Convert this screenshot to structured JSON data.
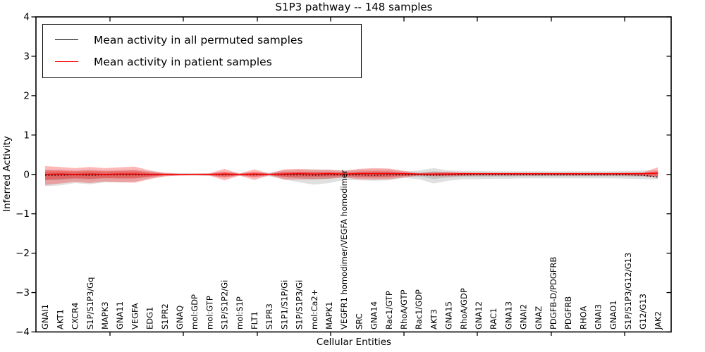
{
  "chart_data": {
    "type": "line",
    "title": "S1P3 pathway -- 148 samples",
    "xlabel": "Cellular Entities",
    "ylabel": "Inferred Activity",
    "ylim": [
      -4,
      4
    ],
    "yticks": [
      4,
      3,
      2,
      1,
      0,
      -1,
      -2,
      -3,
      -4
    ],
    "grid": false,
    "legend_position": "upper left",
    "sample_count_in_title": 148,
    "categories": [
      "GNAI1",
      "AKT1",
      "CXCR4",
      "S1P/S1P3/Gq",
      "MAPK3",
      "GNA11",
      "VEGFA",
      "EDG1",
      "S1PR2",
      "GNAQ",
      "mol:GDP",
      "mol:GTP",
      "S1P/S1P2/Gi",
      "mol:S1P",
      "FLT1",
      "S1PR3",
      "S1P1/S1P/Gi",
      "S1P/S1P3/Gi",
      "mol:Ca2+",
      "MAPK1",
      "VEGFR1 homodimer/VEGFA homodimer",
      "SRC",
      "GNA14",
      "Rac1/GTP",
      "RhoA/GTP",
      "Rac1/GDP",
      "AKT3",
      "GNA15",
      "RhoA/GDP",
      "GNA12",
      "RAC1",
      "GNA13",
      "GNAI2",
      "GNAZ",
      "PDGFB-D/PDGFRB",
      "PDGFRB",
      "RHOA",
      "GNAI3",
      "GNAO1",
      "S1P/S1P3/G12/G13",
      "G12/G13",
      "JAK2"
    ],
    "series": [
      {
        "name": "Mean activity in all permuted samples",
        "color": "#000000",
        "line_style": "dashed",
        "values": [
          -0.02,
          -0.02,
          -0.01,
          -0.02,
          -0.01,
          -0.01,
          -0.01,
          -0.01,
          0,
          0,
          0,
          0,
          -0.01,
          0,
          -0.01,
          0,
          -0.01,
          -0.01,
          -0.02,
          -0.01,
          -0.01,
          -0.01,
          -0.02,
          -0.01,
          -0.01,
          -0.01,
          -0.02,
          -0.01,
          -0.01,
          -0.01,
          -0.01,
          -0.01,
          -0.01,
          -0.01,
          -0.01,
          -0.01,
          -0.01,
          -0.01,
          -0.01,
          -0.01,
          -0.02,
          -0.07
        ]
      },
      {
        "name": "Mean activity in patient samples",
        "color": "#ff0000",
        "line_style": "solid",
        "values": [
          0,
          0.01,
          0,
          0.01,
          0,
          0.01,
          0.01,
          0,
          0,
          0,
          0,
          0,
          0.01,
          0,
          0.01,
          0,
          0.01,
          0.02,
          0.01,
          0.02,
          0.01,
          0.02,
          0.02,
          0.02,
          0.02,
          0.01,
          0.01,
          0.01,
          0.02,
          0.02,
          0.02,
          0.02,
          0.02,
          0.02,
          0.02,
          0.02,
          0.02,
          0.02,
          0.02,
          0.02,
          0.02,
          0.03
        ]
      }
    ],
    "bands": [
      {
        "name": "permuted samples activity spread",
        "color": "#000000",
        "fill_opacity": 0.12,
        "upper": [
          0.12,
          0.12,
          0.1,
          0.12,
          0.1,
          0.11,
          0.12,
          0.08,
          0.04,
          0.03,
          0.03,
          0.03,
          0.06,
          0.04,
          0.05,
          0.05,
          0.1,
          0.12,
          0.13,
          0.12,
          0.1,
          0.12,
          0.13,
          0.13,
          0.08,
          0.1,
          0.16,
          0.1,
          0.09,
          0.09,
          0.08,
          0.08,
          0.08,
          0.08,
          0.08,
          0.08,
          0.08,
          0.08,
          0.08,
          0.09,
          0.1,
          0.1
        ],
        "lower": [
          -0.3,
          -0.28,
          -0.22,
          -0.25,
          -0.2,
          -0.2,
          -0.18,
          -0.1,
          -0.05,
          -0.03,
          -0.03,
          -0.04,
          -0.07,
          -0.04,
          -0.06,
          -0.05,
          -0.13,
          -0.2,
          -0.26,
          -0.22,
          -0.14,
          -0.15,
          -0.16,
          -0.15,
          -0.09,
          -0.12,
          -0.23,
          -0.16,
          -0.12,
          -0.12,
          -0.11,
          -0.11,
          -0.1,
          -0.1,
          -0.1,
          -0.1,
          -0.1,
          -0.1,
          -0.1,
          -0.11,
          -0.12,
          -0.13
        ]
      },
      {
        "name": "patient samples activity spread",
        "color": "#ff0000",
        "fill_opacity": 0.28,
        "upper": [
          0.21,
          0.19,
          0.16,
          0.19,
          0.16,
          0.18,
          0.2,
          0.1,
          0.04,
          0.02,
          0.02,
          0.03,
          0.14,
          0.02,
          0.13,
          0.02,
          0.13,
          0.14,
          0.12,
          0.12,
          0.09,
          0.14,
          0.16,
          0.15,
          0.09,
          0.03,
          0.06,
          0.07,
          0.04,
          0.03,
          0.03,
          0.03,
          0.03,
          0.03,
          0.03,
          0.03,
          0.03,
          0.03,
          0.03,
          0.04,
          0.05,
          0.18
        ],
        "lower": [
          -0.27,
          -0.23,
          -0.19,
          -0.22,
          -0.18,
          -0.2,
          -0.21,
          -0.12,
          -0.05,
          -0.03,
          -0.02,
          -0.03,
          -0.15,
          -0.03,
          -0.14,
          -0.02,
          -0.13,
          -0.13,
          -0.12,
          -0.11,
          -0.08,
          -0.12,
          -0.13,
          -0.12,
          -0.08,
          -0.03,
          -0.05,
          -0.05,
          -0.04,
          -0.03,
          -0.03,
          -0.03,
          -0.03,
          -0.03,
          -0.03,
          -0.03,
          -0.03,
          -0.03,
          -0.03,
          -0.03,
          -0.04,
          -0.08
        ]
      }
    ]
  }
}
